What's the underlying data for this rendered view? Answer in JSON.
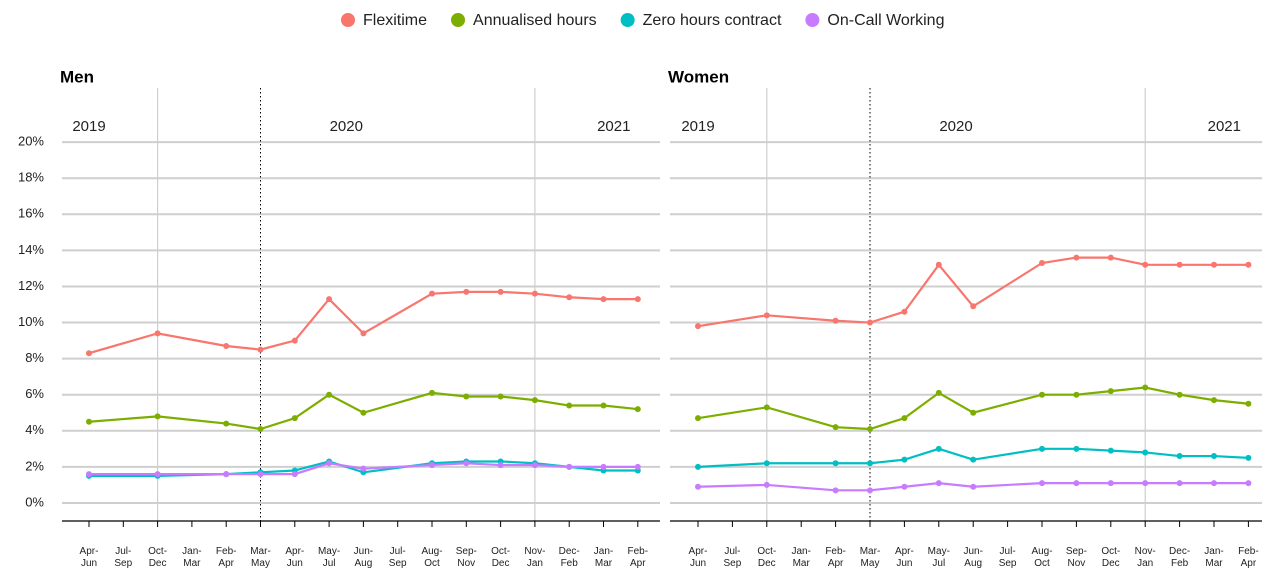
{
  "chart_data": [
    {
      "type": "line",
      "title": "Men",
      "years": [
        "2019",
        "2020",
        "2021"
      ],
      "categories": [
        "Apr-Jun",
        "Jul-Sep",
        "Oct-Dec",
        "Jan-Mar",
        "Feb-Apr",
        "Mar-May",
        "Apr-Jun",
        "May-Jul",
        "Jun-Aug",
        "Jul-Sep",
        "Aug-Oct",
        "Sep-Nov",
        "Oct-Dec",
        "Nov-Jan",
        "Dec-Feb",
        "Jan-Mar",
        "Feb-Apr"
      ],
      "ylim": [
        -1,
        23
      ],
      "yticks": [
        {
          "value": 0,
          "label": "0%"
        },
        {
          "value": 2,
          "label": "2%"
        },
        {
          "value": 4,
          "label": "4%"
        },
        {
          "value": 6,
          "label": "6%"
        },
        {
          "value": 8,
          "label": "8%"
        },
        {
          "value": 10,
          "label": "10%"
        },
        {
          "value": 12,
          "label": "12%"
        },
        {
          "value": 14,
          "label": "14%"
        },
        {
          "value": 16,
          "label": "16%"
        },
        {
          "value": 18,
          "label": "18%"
        },
        {
          "value": 20,
          "label": "20%"
        }
      ],
      "grid": true,
      "series": [
        {
          "name": "Flexitime",
          "color": "#f8766d",
          "values": [
            8.3,
            null,
            9.4,
            null,
            8.7,
            8.5,
            9.0,
            11.3,
            9.4,
            null,
            11.6,
            11.7,
            11.7,
            11.6,
            11.4,
            11.3,
            11.3
          ]
        },
        {
          "name": "Annualised hours",
          "color": "#7cae00",
          "values": [
            4.5,
            null,
            4.8,
            null,
            4.4,
            4.1,
            4.7,
            6.0,
            5.0,
            null,
            6.1,
            5.9,
            5.9,
            5.7,
            5.4,
            5.4,
            5.2
          ]
        },
        {
          "name": "Zero hours contract",
          "color": "#00bfc4",
          "values": [
            1.5,
            null,
            1.5,
            null,
            1.6,
            1.7,
            1.8,
            2.3,
            1.7,
            null,
            2.2,
            2.3,
            2.3,
            2.2,
            2.0,
            1.8,
            1.8
          ]
        },
        {
          "name": "On-Call Working",
          "color": "#c77cff",
          "values": [
            1.6,
            null,
            1.6,
            null,
            1.6,
            1.6,
            1.6,
            2.2,
            1.9,
            null,
            2.1,
            2.2,
            2.1,
            2.1,
            2.0,
            2.0,
            2.0
          ]
        }
      ]
    },
    {
      "type": "line",
      "title": "Women",
      "years": [
        "2019",
        "2020",
        "2021"
      ],
      "categories": [
        "Apr-Jun",
        "Jul-Sep",
        "Oct-Dec",
        "Jan-Mar",
        "Feb-Apr",
        "Mar-May",
        "Apr-Jun",
        "May-Jul",
        "Jun-Aug",
        "Jul-Sep",
        "Aug-Oct",
        "Sep-Nov",
        "Oct-Dec",
        "Nov-Jan",
        "Dec-Feb",
        "Jan-Mar",
        "Feb-Apr"
      ],
      "ylim": [
        -1,
        23
      ],
      "yticks": [
        0,
        2,
        4,
        6,
        8,
        10,
        12,
        14,
        16,
        18,
        20
      ],
      "grid": true,
      "series": [
        {
          "name": "Flexitime",
          "color": "#f8766d",
          "values": [
            9.8,
            null,
            10.4,
            null,
            10.1,
            10.0,
            10.6,
            13.2,
            10.9,
            null,
            13.3,
            13.6,
            13.6,
            13.2,
            13.2,
            13.2,
            13.2
          ]
        },
        {
          "name": "Annualised hours",
          "color": "#7cae00",
          "values": [
            4.7,
            null,
            5.3,
            null,
            4.2,
            4.1,
            4.7,
            6.1,
            5.0,
            null,
            6.0,
            6.0,
            6.2,
            6.4,
            6.0,
            5.7,
            5.5
          ]
        },
        {
          "name": "Zero hours contract",
          "color": "#00bfc4",
          "values": [
            2.0,
            null,
            2.2,
            null,
            2.2,
            2.2,
            2.4,
            3.0,
            2.4,
            null,
            3.0,
            3.0,
            2.9,
            2.8,
            2.6,
            2.6,
            2.5
          ]
        },
        {
          "name": "On-Call Working",
          "color": "#c77cff",
          "values": [
            0.9,
            null,
            1.0,
            null,
            0.7,
            0.7,
            0.9,
            1.1,
            0.9,
            null,
            1.1,
            1.1,
            1.1,
            1.1,
            1.1,
            1.1,
            1.1
          ]
        }
      ]
    }
  ]
}
